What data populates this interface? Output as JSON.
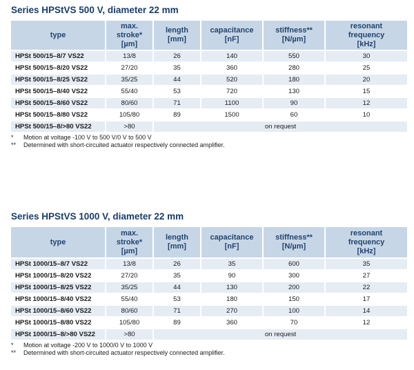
{
  "headers": {
    "type": "type",
    "stroke": [
      "max.",
      "stroke*",
      "[µm]"
    ],
    "length": [
      "length",
      "[mm]"
    ],
    "capacitance": [
      "capacitance",
      "[nF]"
    ],
    "stiffness": [
      "stiffness**",
      "[N/µm]"
    ],
    "frequency": [
      "resonant",
      "frequency",
      "[kHz]"
    ]
  },
  "tables": [
    {
      "title": "Series HPStVS 500 V, diameter 22 mm",
      "rows": [
        {
          "type": "HPSt 500/15–8/7 VS22",
          "stroke": "13/8",
          "length": "26",
          "capacitance": "140",
          "stiffness": "550",
          "frequency": "30"
        },
        {
          "type": "HPSt 500/15–8/20 VS22",
          "stroke": "27/20",
          "length": "35",
          "capacitance": "360",
          "stiffness": "280",
          "frequency": "25"
        },
        {
          "type": "HPSt 500/15–8/25 VS22",
          "stroke": "35/25",
          "length": "44",
          "capacitance": "520",
          "stiffness": "180",
          "frequency": "20"
        },
        {
          "type": "HPSt 500/15–8/40 VS22",
          "stroke": "55/40",
          "length": "53",
          "capacitance": "720",
          "stiffness": "130",
          "frequency": "15"
        },
        {
          "type": "HPSt 500/15–8/60 VS22",
          "stroke": "80/60",
          "length": "71",
          "capacitance": "1100",
          "stiffness": "90",
          "frequency": "12"
        },
        {
          "type": "HPSt 500/15–8/80 VS22",
          "stroke": "105/80",
          "length": "89",
          "capacitance": "1500",
          "stiffness": "60",
          "frequency": "10"
        }
      ],
      "last_row": {
        "type": "HPSt 500/15–8/>80 VS22",
        "stroke": ">80",
        "note": "on request"
      },
      "notes": [
        {
          "mark": "*",
          "text": "Motion at voltage -100 V to 500 V/0 V to 500 V"
        },
        {
          "mark": "**",
          "text": "Determined with short-circuited actuator respectively connected amplifier."
        }
      ]
    },
    {
      "title": "Series HPStVS 1000 V, diameter 22 mm",
      "rows": [
        {
          "type": "HPSt 1000/15–8/7 VS22",
          "stroke": "13/8",
          "length": "26",
          "capacitance": "35",
          "stiffness": "600",
          "frequency": "35"
        },
        {
          "type": "HPSt 1000/15–8/20 VS22",
          "stroke": "27/20",
          "length": "35",
          "capacitance": "90",
          "stiffness": "300",
          "frequency": "27"
        },
        {
          "type": "HPSt 1000/15–8/25 VS22",
          "stroke": "35/25",
          "length": "44",
          "capacitance": "130",
          "stiffness": "200",
          "frequency": "22"
        },
        {
          "type": "HPSt 1000/15–8/40 VS22",
          "stroke": "55/40",
          "length": "53",
          "capacitance": "180",
          "stiffness": "150",
          "frequency": "17"
        },
        {
          "type": "HPSt 1000/15–8/60 VS22",
          "stroke": "80/60",
          "length": "71",
          "capacitance": "270",
          "stiffness": "100",
          "frequency": "14"
        },
        {
          "type": "HPSt 1000/15–8/80 VS22",
          "stroke": "105/80",
          "length": "89",
          "capacitance": "360",
          "stiffness": "70",
          "frequency": "12"
        }
      ],
      "last_row": {
        "type": "HPSt 1000/15–8/>80 VS22",
        "stroke": ">80",
        "note": "on request"
      },
      "notes": [
        {
          "mark": "*",
          "text": "Motion at voltage -200 V to 1000/0 V to 1000 V"
        },
        {
          "mark": "**",
          "text": "Determined with short-circuited actuator respectively connected amplifier."
        }
      ]
    }
  ]
}
